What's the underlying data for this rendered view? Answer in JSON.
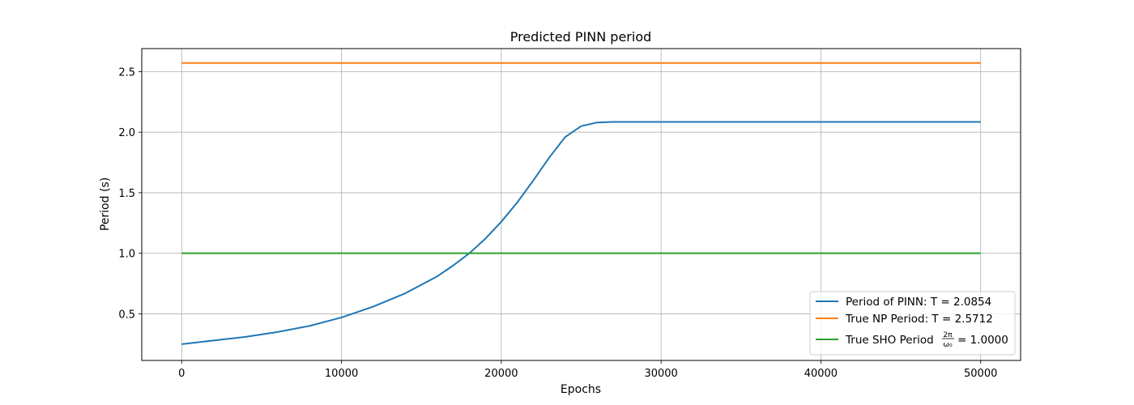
{
  "chart_data": {
    "type": "line",
    "title": "Predicted PINN period",
    "xlabel": "Epochs",
    "ylabel": "Period (s)",
    "xlim": [
      -2500,
      52500
    ],
    "ylim": [
      0.115,
      2.69
    ],
    "xticks": [
      0,
      10000,
      20000,
      30000,
      40000,
      50000
    ],
    "yticks": [
      0.5,
      1.0,
      1.5,
      2.0,
      2.5
    ],
    "xtick_labels": [
      "0",
      "10000",
      "20000",
      "30000",
      "40000",
      "50000"
    ],
    "ytick_labels": [
      "0.5",
      "1.0",
      "1.5",
      "2.0",
      "2.5"
    ],
    "grid": true,
    "legend_position": "bottom-right",
    "series": [
      {
        "name": "Period of PINN: T = 2.0854",
        "color": "#1f77b4",
        "x": [
          0,
          2000,
          4000,
          6000,
          8000,
          10000,
          12000,
          14000,
          16000,
          17000,
          18000,
          19000,
          20000,
          21000,
          22000,
          23000,
          24000,
          25000,
          26000,
          27000,
          28000,
          30000,
          35000,
          40000,
          45000,
          50000
        ],
        "y": [
          0.25,
          0.28,
          0.31,
          0.35,
          0.4,
          0.47,
          0.56,
          0.67,
          0.81,
          0.9,
          1.0,
          1.12,
          1.26,
          1.42,
          1.6,
          1.79,
          1.96,
          2.05,
          2.08,
          2.085,
          2.085,
          2.085,
          2.085,
          2.085,
          2.085,
          2.085
        ]
      },
      {
        "name": "True NP Period: T = 2.5712",
        "color": "#ff7f0e",
        "x": [
          0,
          50000
        ],
        "y": [
          2.5712,
          2.5712
        ]
      },
      {
        "name": "True SHO Period",
        "legend_math": "2π/ω₀",
        "legend_value": "= 1.0000",
        "color": "#2ca02c",
        "x": [
          0,
          50000
        ],
        "y": [
          1.0,
          1.0
        ]
      }
    ]
  }
}
